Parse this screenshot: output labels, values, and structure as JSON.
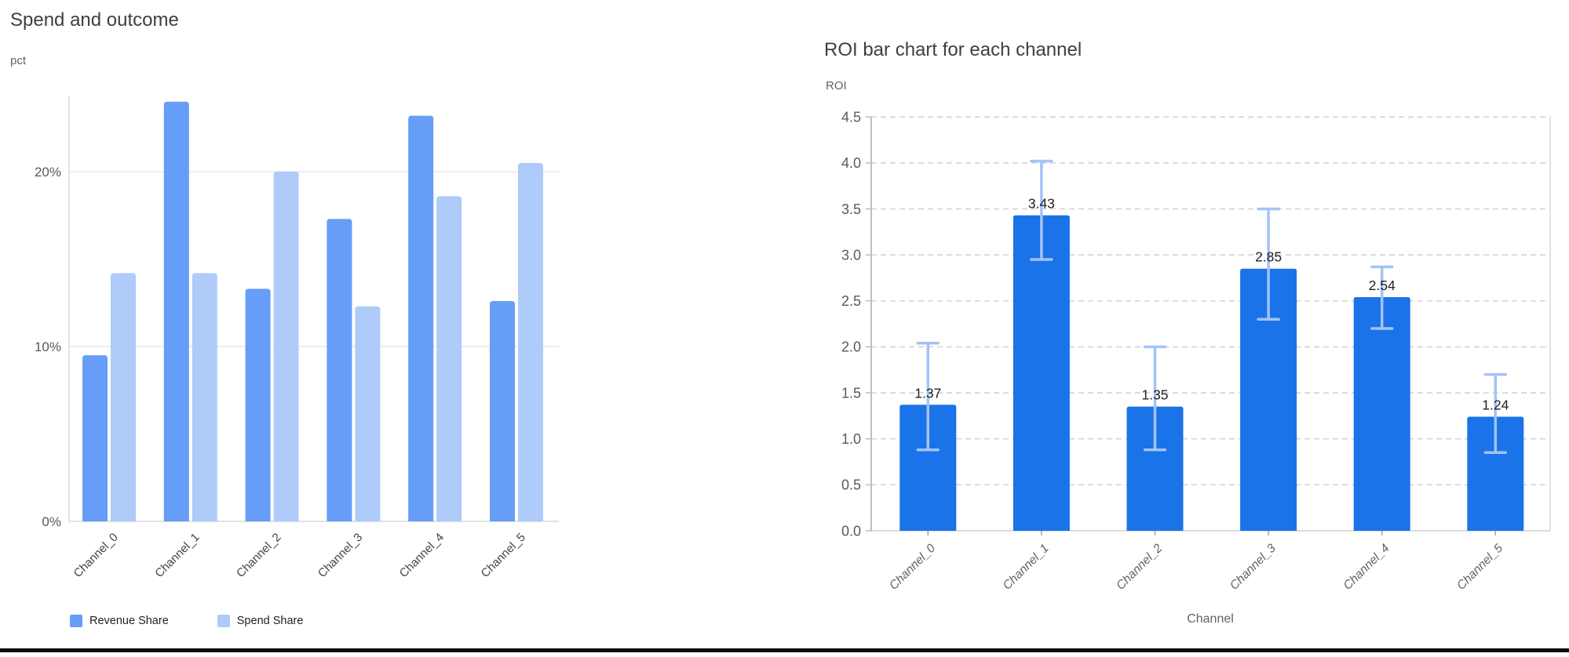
{
  "page": {
    "background": "#ffffff",
    "bottom_rule_color": "#0b0b0c"
  },
  "chart_data": [
    {
      "type": "bar",
      "title": "Spend and outcome",
      "ylabel": "pct",
      "xlabel": "",
      "categories": [
        "Channel_0",
        "Channel_1",
        "Channel_2",
        "Channel_3",
        "Channel_4",
        "Channel_5"
      ],
      "series": [
        {
          "name": "Revenue Share",
          "color": "#669df6",
          "values": [
            9.5,
            24.0,
            13.3,
            17.3,
            23.2,
            12.6
          ]
        },
        {
          "name": "Spend Share",
          "color": "#aecbfa",
          "values": [
            14.2,
            14.2,
            20.0,
            12.3,
            18.6,
            20.5
          ]
        }
      ],
      "value_unit": "percent",
      "y_ticks": [
        {
          "v": 0,
          "label": "0%"
        },
        {
          "v": 10,
          "label": "10%"
        },
        {
          "v": 20,
          "label": "20%"
        }
      ],
      "ylim": [
        0,
        24.7
      ],
      "grid": "solid-horizontal",
      "legend_position": "bottom-left"
    },
    {
      "type": "bar",
      "title": "ROI bar chart for each channel",
      "ylabel": "ROI",
      "xlabel": "Channel",
      "categories": [
        "Channel_0",
        "Channel_1",
        "Channel_2",
        "Channel_3",
        "Channel_4",
        "Channel_5"
      ],
      "values": [
        1.37,
        3.43,
        1.35,
        2.85,
        2.54,
        1.24
      ],
      "bar_labels": [
        "1.37",
        "3.43",
        "1.35",
        "2.85",
        "2.54",
        "1.24"
      ],
      "error_low": [
        0.88,
        2.95,
        0.88,
        2.3,
        2.2,
        0.85
      ],
      "error_high": [
        2.04,
        4.02,
        2.0,
        3.5,
        2.87,
        1.7
      ],
      "bar_color": "#1a73e8",
      "error_bar_color": "#a3c3f7",
      "y_ticks": [
        {
          "v": 0.0,
          "label": "0.0"
        },
        {
          "v": 0.5,
          "label": "0.5"
        },
        {
          "v": 1.0,
          "label": "1.0"
        },
        {
          "v": 1.5,
          "label": "1.5"
        },
        {
          "v": 2.0,
          "label": "2.0"
        },
        {
          "v": 2.5,
          "label": "2.5"
        },
        {
          "v": 3.0,
          "label": "3.0"
        },
        {
          "v": 3.5,
          "label": "3.5"
        },
        {
          "v": 4.0,
          "label": "4.0"
        },
        {
          "v": 4.5,
          "label": "4.5"
        }
      ],
      "ylim": [
        0,
        4.5
      ],
      "grid": "dashed-horizontal",
      "legend_position": "none"
    }
  ],
  "colors": {
    "title_text": "#3c4043",
    "axis_text": "#5f6368",
    "tick_text": "#57595c",
    "bar_value_text": "#202124",
    "grid_solid": "#e7e8ea",
    "grid_dashed": "#d4d4d4",
    "axis_line": "#dadce0",
    "baseline": "#d6d7d9",
    "left_axis_strong": "#b5b9bd"
  }
}
